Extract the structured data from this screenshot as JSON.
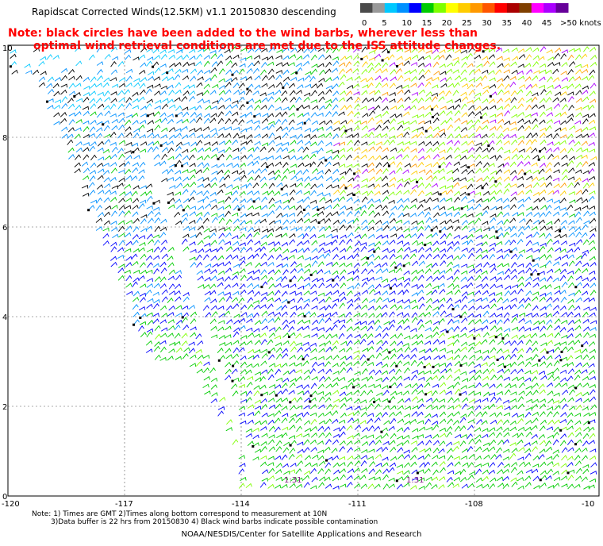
{
  "title": "Rapidscat Corrected Winds(12.5KM) v1.1 20150830 descending",
  "note": {
    "line1": "Note: black circles have been added to the wind barbs, wherever less than",
    "line2": "optimal wind retrieval conditions are met due to the ISS attitude changes."
  },
  "legend": {
    "labels": [
      "0",
      "5",
      "10",
      "15",
      "20",
      "25",
      "30",
      "35",
      "40",
      "45",
      ">50 knots"
    ],
    "colors": [
      "#4a4a4a",
      "#999999",
      "#00c8ff",
      "#0090ff",
      "#0000ff",
      "#00cc00",
      "#7fff00",
      "#ffff00",
      "#ffcc00",
      "#ff9900",
      "#ff5500",
      "#ff0000",
      "#aa0000",
      "#7f3f00",
      "#ff00ff",
      "#aa00ff",
      "#660099"
    ]
  },
  "axes": {
    "x_ticks": [
      "-120",
      "-117",
      "-114",
      "-111",
      "-108",
      "-10"
    ],
    "y_ticks": [
      "0",
      "2",
      "4",
      "6",
      "8",
      "10"
    ]
  },
  "pass_times": [
    "1:31",
    "1:31"
  ],
  "footnote": {
    "line1": "Note: 1) Times are GMT 2)Times along bottom correspond to measurement at 10N",
    "line2": "3)Data buffer is 22 hrs from 20150830 4) Black wind barbs indicate possible contamination"
  },
  "credit": "NOAA/NESDIS/Center for Satellite Applications and Research"
}
